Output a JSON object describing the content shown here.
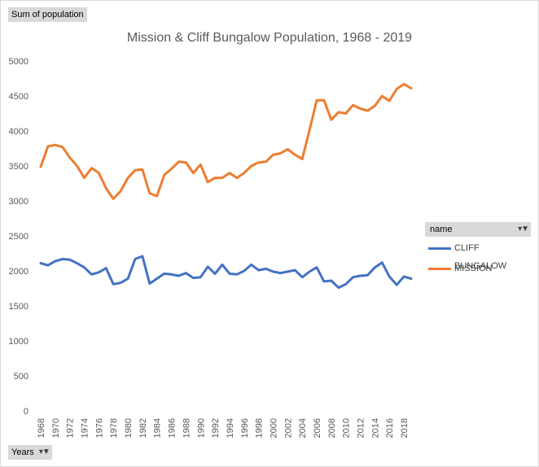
{
  "buttons": {
    "sum_label": "Sum of population",
    "years_label": "Years",
    "name_label": "name"
  },
  "icons": {
    "filter": "filter-dropdown-icon"
  },
  "chart_data": {
    "type": "line",
    "title": "Mission & Cliff Bungalow Population, 1968 - 2019",
    "xlabel": "",
    "ylabel": "",
    "ylim": [
      0,
      5000
    ],
    "yticks": [
      0,
      500,
      1000,
      1500,
      2000,
      2500,
      3000,
      3500,
      4000,
      4500,
      5000
    ],
    "xticks": [
      "1968",
      "1970",
      "1972",
      "1974",
      "1976",
      "1978",
      "1980",
      "1982",
      "1984",
      "1986",
      "1988",
      "1990",
      "1992",
      "1994",
      "1996",
      "1998",
      "2000",
      "2002",
      "2004",
      "2006",
      "2008",
      "2010",
      "2012",
      "2014",
      "2016",
      "2018"
    ],
    "x": [
      1968,
      1969,
      1970,
      1971,
      1972,
      1973,
      1974,
      1975,
      1976,
      1977,
      1978,
      1979,
      1980,
      1981,
      1982,
      1983,
      1984,
      1985,
      1986,
      1987,
      1988,
      1989,
      1990,
      1991,
      1992,
      1993,
      1994,
      1995,
      1996,
      1997,
      1998,
      1999,
      2000,
      2001,
      2002,
      2003,
      2004,
      2005,
      2006,
      2007,
      2008,
      2009,
      2010,
      2011,
      2012,
      2013,
      2014,
      2015,
      2016,
      2017,
      2018,
      2019
    ],
    "legend_position": "right",
    "grid": false,
    "series": [
      {
        "name": "CLIFF BUNGALOW",
        "color": "#4472C4",
        "values": [
          2110,
          2080,
          2140,
          2170,
          2160,
          2110,
          2050,
          1950,
          1980,
          2040,
          1810,
          1830,
          1890,
          2170,
          2210,
          1820,
          1890,
          1960,
          1950,
          1930,
          1970,
          1900,
          1910,
          2060,
          1960,
          2090,
          1960,
          1950,
          2000,
          2090,
          2010,
          2030,
          1990,
          1970,
          1990,
          2010,
          1910,
          1990,
          2050,
          1850,
          1860,
          1760,
          1810,
          1910,
          1930,
          1940,
          2050,
          2120,
          1920,
          1800,
          1920,
          1890
        ]
      },
      {
        "name": "MISSION",
        "color": "#ED7D31",
        "values": [
          3490,
          3780,
          3800,
          3770,
          3620,
          3500,
          3330,
          3470,
          3400,
          3180,
          3030,
          3140,
          3330,
          3440,
          3450,
          3110,
          3070,
          3370,
          3460,
          3560,
          3550,
          3400,
          3520,
          3270,
          3330,
          3330,
          3400,
          3330,
          3400,
          3500,
          3550,
          3560,
          3660,
          3680,
          3740,
          3660,
          3600,
          4010,
          4440,
          4440,
          4160,
          4270,
          4250,
          4370,
          4320,
          4290,
          4360,
          4500,
          4430,
          4600,
          4670,
          4610
        ]
      }
    ]
  }
}
